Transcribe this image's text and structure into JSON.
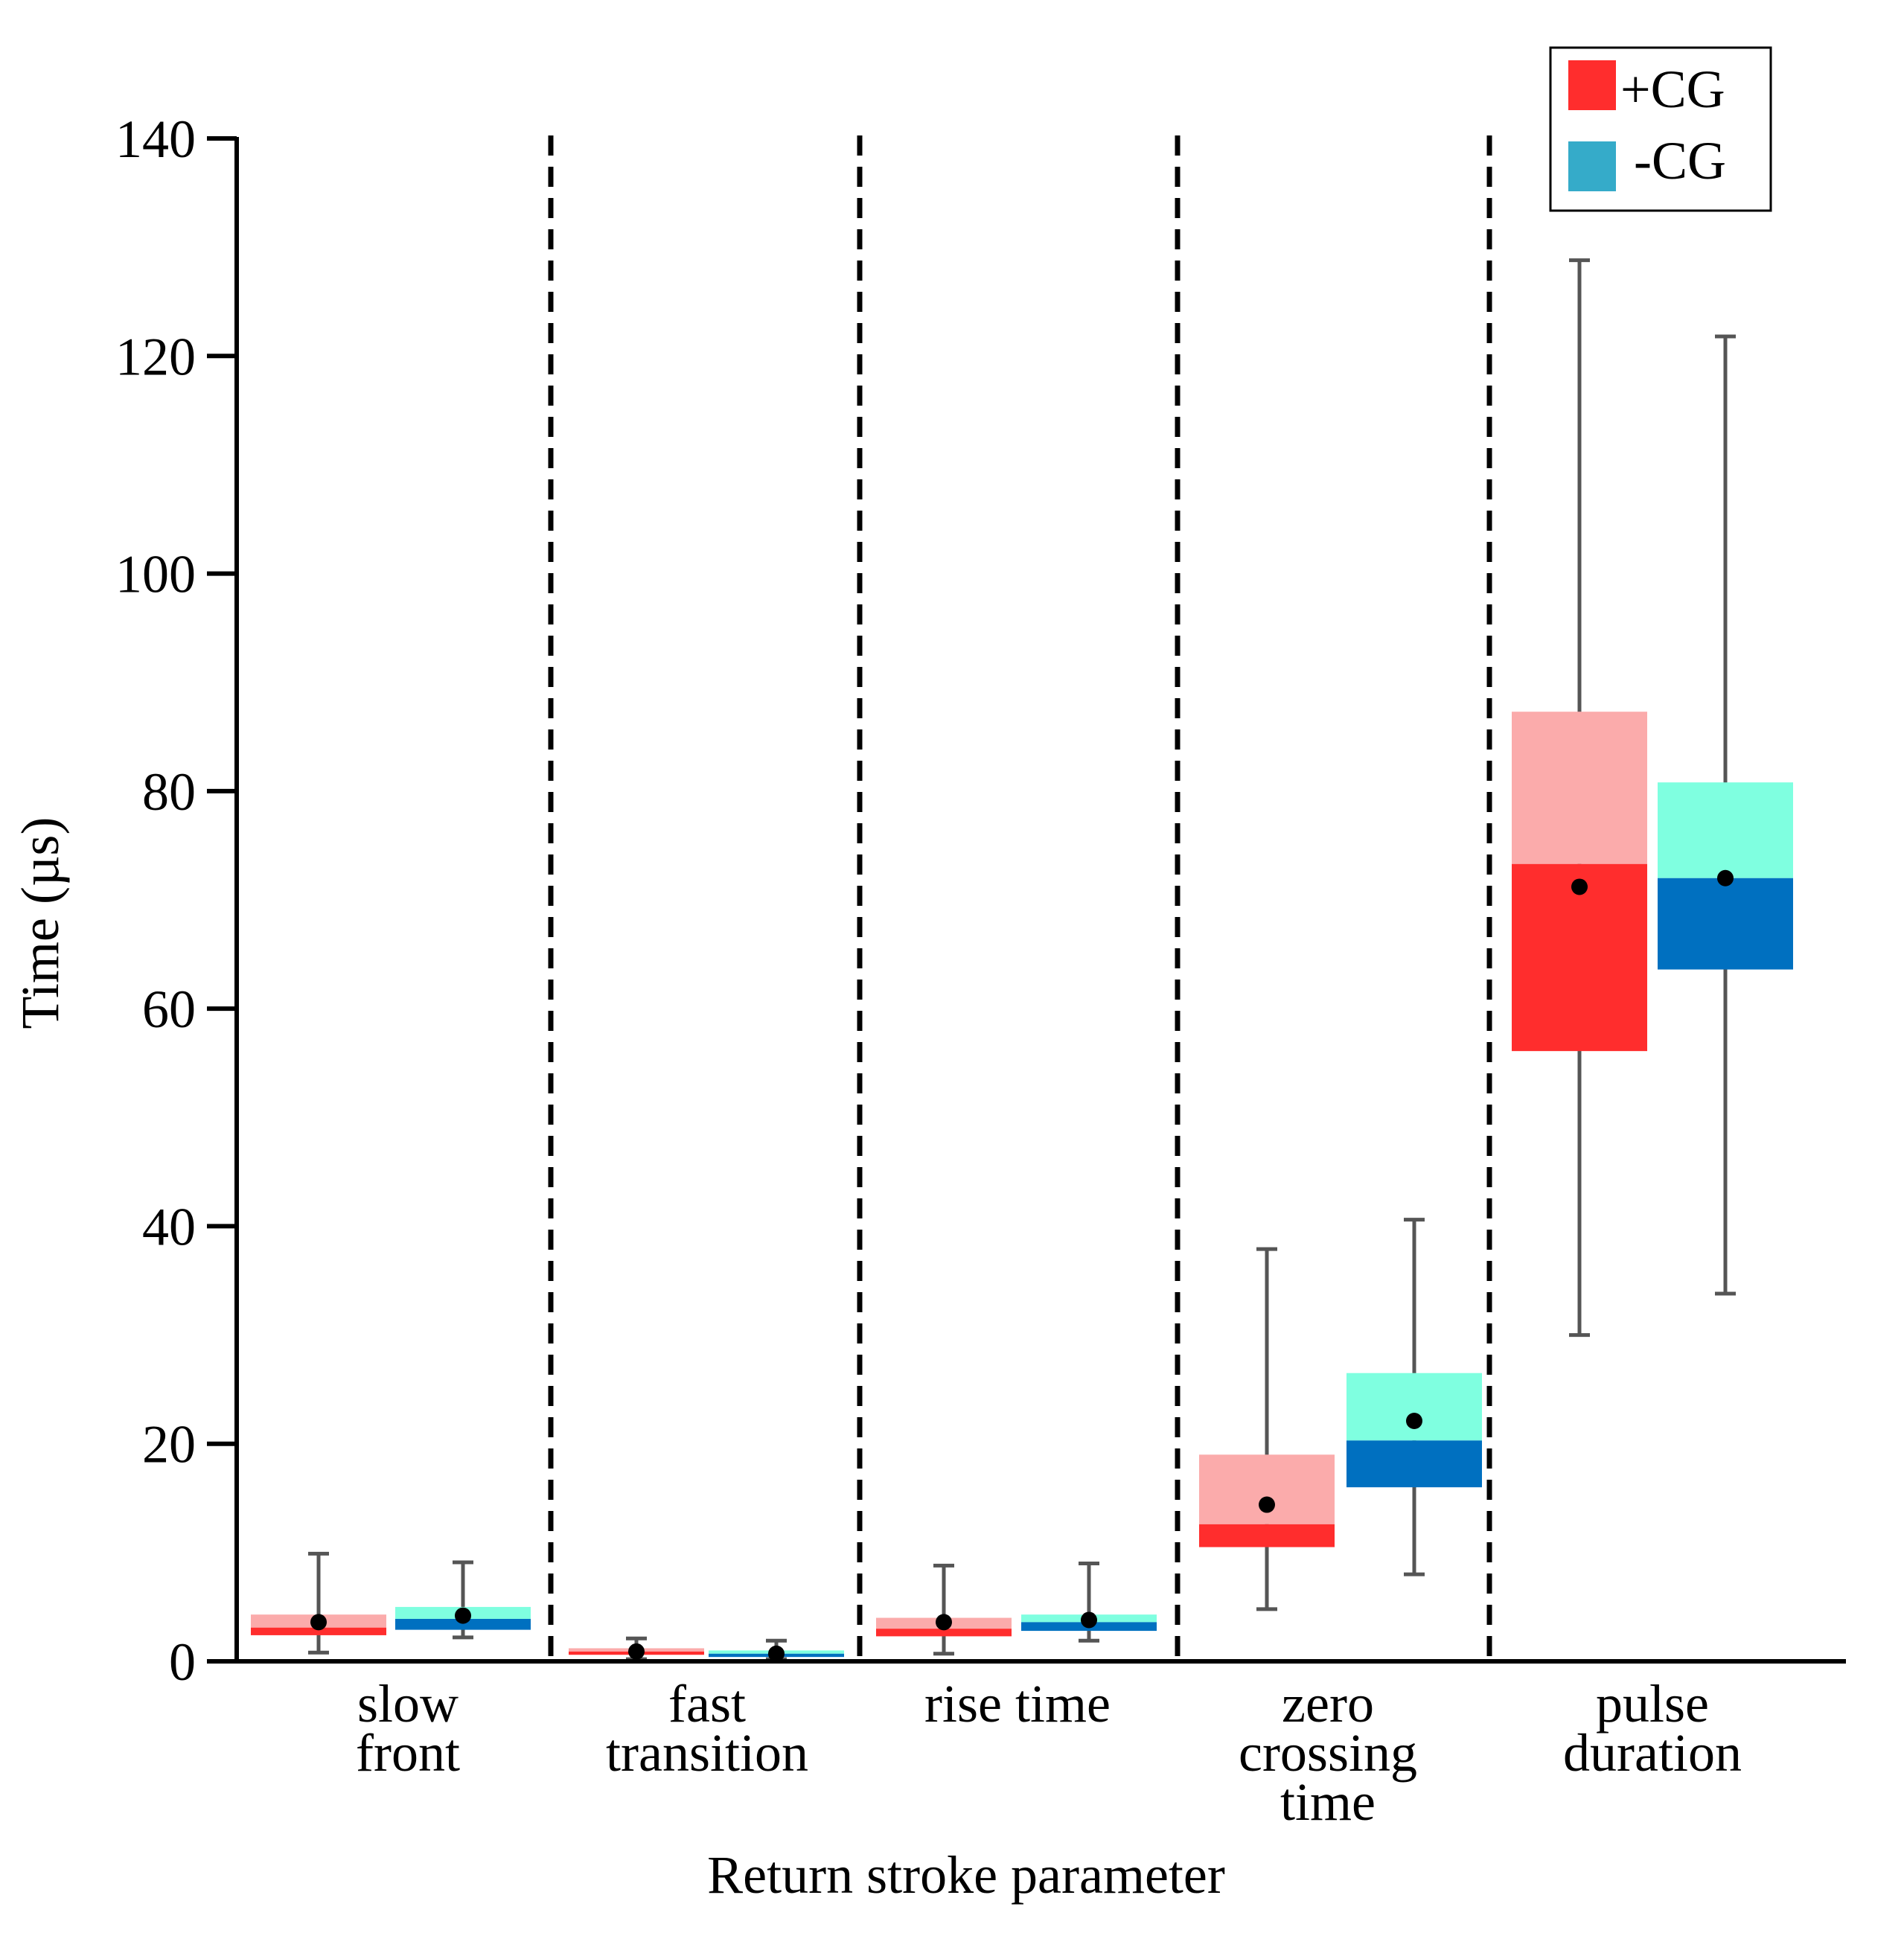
{
  "chart_data": {
    "type": "box",
    "title": "",
    "xlabel": "Return stroke parameter",
    "ylabel": "Time (µs)",
    "ylim": [
      0,
      140
    ],
    "yticks": [
      0,
      20,
      40,
      60,
      80,
      100,
      120,
      140
    ],
    "legend_position": "top-right",
    "series": [
      {
        "name": "+CG",
        "color_low": "#ff2d2d",
        "color_high": "#fbabab",
        "legend_color": "#ff2d2d"
      },
      {
        "name": "-CG",
        "color_low": "#0070c0",
        "color_high": "#7fffe0",
        "legend_color": "#35abc9"
      }
    ],
    "categories": [
      {
        "label_lines": [
          "slow",
          "front"
        ],
        "boxes": [
          {
            "series": "+CG",
            "whisker_low": 0.8,
            "q1": 2.4,
            "median": 3.1,
            "q3": 4.3,
            "whisker_high": 9.9,
            "mean": 3.6
          },
          {
            "series": "-CG",
            "whisker_low": 2.2,
            "q1": 2.9,
            "median": 3.9,
            "q3": 5.0,
            "whisker_high": 9.1,
            "mean": 4.2
          }
        ]
      },
      {
        "label_lines": [
          "fast",
          "transition"
        ],
        "boxes": [
          {
            "series": "+CG",
            "whisker_low": 0.2,
            "q1": 0.6,
            "median": 0.9,
            "q3": 1.2,
            "whisker_high": 2.1,
            "mean": 0.9
          },
          {
            "series": "-CG",
            "whisker_low": 0.2,
            "q1": 0.4,
            "median": 0.7,
            "q3": 1.0,
            "whisker_high": 1.9,
            "mean": 0.7
          }
        ]
      },
      {
        "label_lines": [
          "rise time"
        ],
        "boxes": [
          {
            "series": "+CG",
            "whisker_low": 0.7,
            "q1": 2.3,
            "median": 3.0,
            "q3": 4.0,
            "whisker_high": 8.8,
            "mean": 3.6
          },
          {
            "series": "-CG",
            "whisker_low": 1.9,
            "q1": 2.8,
            "median": 3.6,
            "q3": 4.3,
            "whisker_high": 9.0,
            "mean": 3.8
          }
        ]
      },
      {
        "label_lines": [
          "zero",
          "crossing",
          "time"
        ],
        "boxes": [
          {
            "series": "+CG",
            "whisker_low": 4.8,
            "q1": 10.5,
            "median": 12.6,
            "q3": 19.0,
            "whisker_high": 37.9,
            "mean": 14.4
          },
          {
            "series": "-CG",
            "whisker_low": 8.0,
            "q1": 16.0,
            "median": 20.3,
            "q3": 26.5,
            "whisker_high": 40.6,
            "mean": 22.1
          }
        ]
      },
      {
        "label_lines": [
          "pulse",
          "duration"
        ],
        "boxes": [
          {
            "series": "+CG",
            "whisker_low": 30.0,
            "q1": 56.1,
            "median": 73.3,
            "q3": 87.3,
            "whisker_high": 128.8,
            "mean": 71.2
          },
          {
            "series": "-CG",
            "whisker_low": 33.8,
            "q1": 63.6,
            "median": 72.0,
            "q3": 80.8,
            "whisker_high": 121.8,
            "mean": 72.0
          }
        ]
      }
    ]
  }
}
